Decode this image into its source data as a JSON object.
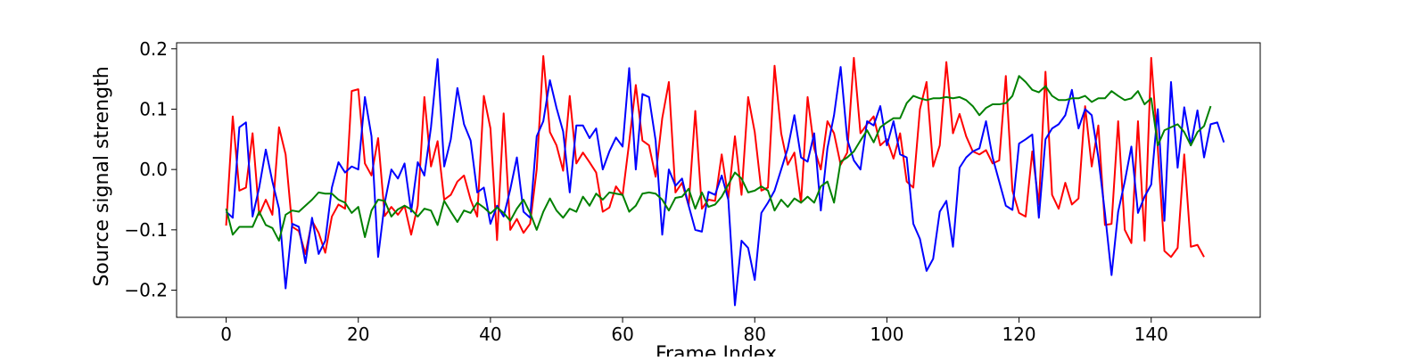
{
  "chart_data": {
    "type": "line",
    "title": "",
    "xlabel": "Frame Index",
    "ylabel": "Source signal strength",
    "xlim": [
      -7.5,
      156.5
    ],
    "ylim": [
      -0.245,
      0.21
    ],
    "xticks": [
      0,
      20,
      40,
      60,
      80,
      100,
      120,
      140
    ],
    "yticks": [
      -0.2,
      -0.1,
      0.0,
      0.1,
      0.2
    ],
    "ytick_labels": [
      "−0.2",
      "−0.1",
      "0.0",
      "0.1",
      "0.2"
    ],
    "grid": false,
    "legend": "none",
    "series": [
      {
        "color": "#ff0000",
        "values": [
          -0.093,
          0.088,
          -0.035,
          -0.03,
          0.06,
          -0.075,
          -0.05,
          -0.075,
          0.07,
          0.025,
          -0.095,
          -0.102,
          -0.14,
          -0.085,
          -0.105,
          -0.138,
          -0.078,
          -0.058,
          -0.065,
          0.13,
          0.133,
          0.01,
          -0.01,
          0.052,
          -0.077,
          -0.062,
          -0.075,
          -0.06,
          -0.108,
          -0.06,
          0.12,
          0.005,
          0.047,
          -0.05,
          -0.042,
          -0.02,
          -0.01,
          -0.05,
          -0.078,
          0.122,
          0.068,
          -0.117,
          0.093,
          -0.1,
          -0.082,
          -0.105,
          -0.09,
          0.0,
          0.188,
          0.062,
          0.04,
          -0.002,
          0.122,
          0.01,
          0.028,
          0.012,
          -0.005,
          -0.07,
          -0.063,
          -0.028,
          -0.043,
          0.045,
          0.14,
          0.048,
          0.04,
          -0.012,
          0.085,
          0.145,
          -0.038,
          -0.022,
          -0.06,
          0.097,
          -0.065,
          -0.05,
          -0.052,
          0.025,
          -0.048,
          0.055,
          -0.042,
          0.12,
          0.062,
          -0.035,
          -0.03,
          0.172,
          0.06,
          0.008,
          0.028,
          -0.055,
          0.12,
          0.035,
          0.0,
          0.08,
          0.06,
          0.008,
          0.028,
          0.185,
          0.06,
          0.075,
          0.088,
          0.04,
          0.05,
          0.018,
          0.06,
          -0.02,
          -0.03,
          0.1,
          0.145,
          0.005,
          0.04,
          0.178,
          0.06,
          0.092,
          0.055,
          0.03,
          0.025,
          0.032,
          0.01,
          0.015,
          0.155,
          -0.035,
          -0.072,
          -0.078,
          0.03,
          -0.058,
          0.162,
          -0.042,
          -0.065,
          -0.022,
          -0.058,
          -0.048,
          0.105,
          0.005,
          0.073,
          -0.092,
          -0.09,
          0.08,
          -0.1,
          -0.122,
          0.08,
          -0.118,
          0.185,
          0.035,
          -0.135,
          -0.145,
          -0.13,
          0.025,
          -0.128,
          -0.125,
          -0.145
        ]
      },
      {
        "color": "#0000ff",
        "values": [
          -0.07,
          -0.08,
          0.07,
          0.078,
          -0.078,
          -0.03,
          0.033,
          -0.02,
          -0.065,
          -0.197,
          -0.09,
          -0.095,
          -0.155,
          -0.08,
          -0.14,
          -0.118,
          -0.03,
          0.012,
          -0.005,
          0.005,
          0.0,
          0.12,
          0.055,
          -0.145,
          -0.055,
          0.0,
          -0.015,
          0.01,
          -0.07,
          0.012,
          -0.01,
          0.07,
          0.183,
          0.005,
          0.05,
          0.135,
          0.075,
          0.048,
          -0.038,
          -0.03,
          -0.09,
          -0.06,
          -0.078,
          -0.033,
          0.02,
          -0.07,
          -0.08,
          0.055,
          0.08,
          0.148,
          0.102,
          0.063,
          -0.038,
          0.073,
          0.073,
          0.052,
          0.068,
          0.0,
          0.03,
          0.053,
          0.038,
          0.168,
          0.0,
          0.125,
          0.12,
          0.048,
          -0.108,
          0.0,
          -0.027,
          -0.015,
          -0.06,
          -0.1,
          -0.103,
          -0.037,
          -0.042,
          -0.01,
          -0.05,
          -0.225,
          -0.118,
          -0.13,
          -0.183,
          -0.072,
          -0.055,
          -0.035,
          0.0,
          0.035,
          0.09,
          0.02,
          0.013,
          0.06,
          -0.068,
          0.035,
          0.09,
          0.17,
          0.05,
          0.015,
          0.0,
          0.08,
          0.073,
          0.105,
          0.04,
          0.08,
          0.025,
          0.02,
          -0.09,
          -0.115,
          -0.168,
          -0.148,
          -0.07,
          -0.052,
          -0.128,
          0.003,
          0.02,
          0.03,
          0.035,
          0.08,
          0.02,
          -0.02,
          -0.06,
          -0.067,
          0.043,
          0.05,
          0.058,
          -0.08,
          0.05,
          0.068,
          0.075,
          0.09,
          0.132,
          0.068,
          0.1,
          0.09,
          0.02,
          -0.072,
          -0.175,
          -0.07,
          -0.02,
          0.038,
          -0.072,
          -0.045,
          -0.025,
          0.1,
          -0.085,
          0.145,
          0.003,
          0.103,
          0.04,
          0.098,
          0.02,
          0.075,
          0.078,
          0.045
        ]
      },
      {
        "color": "#008000",
        "values": [
          -0.065,
          -0.108,
          -0.095,
          -0.095,
          -0.095,
          -0.07,
          -0.092,
          -0.097,
          -0.118,
          -0.075,
          -0.068,
          -0.07,
          -0.06,
          -0.05,
          -0.038,
          -0.04,
          -0.04,
          -0.05,
          -0.055,
          -0.072,
          -0.062,
          -0.112,
          -0.068,
          -0.05,
          -0.052,
          -0.078,
          -0.066,
          -0.06,
          -0.066,
          -0.078,
          -0.065,
          -0.068,
          -0.092,
          -0.052,
          -0.07,
          -0.087,
          -0.068,
          -0.072,
          -0.055,
          -0.063,
          -0.073,
          -0.063,
          -0.072,
          -0.085,
          -0.065,
          -0.05,
          -0.072,
          -0.1,
          -0.07,
          -0.048,
          -0.068,
          -0.08,
          -0.065,
          -0.07,
          -0.045,
          -0.06,
          -0.04,
          -0.05,
          -0.038,
          -0.04,
          -0.042,
          -0.07,
          -0.06,
          -0.04,
          -0.038,
          -0.04,
          -0.05,
          -0.068,
          -0.047,
          -0.045,
          -0.032,
          -0.065,
          -0.038,
          -0.062,
          -0.058,
          -0.045,
          -0.025,
          -0.005,
          -0.015,
          -0.038,
          -0.035,
          -0.028,
          -0.035,
          -0.068,
          -0.05,
          -0.062,
          -0.048,
          -0.055,
          -0.045,
          -0.055,
          -0.028,
          -0.02,
          -0.055,
          0.013,
          0.02,
          0.03,
          0.048,
          0.065,
          0.045,
          0.07,
          0.078,
          0.085,
          0.085,
          0.11,
          0.122,
          0.118,
          0.115,
          0.118,
          0.118,
          0.12,
          0.118,
          0.12,
          0.115,
          0.105,
          0.09,
          0.102,
          0.108,
          0.108,
          0.11,
          0.122,
          0.155,
          0.145,
          0.132,
          0.128,
          0.138,
          0.122,
          0.115,
          0.115,
          0.118,
          0.118,
          0.122,
          0.112,
          0.118,
          0.118,
          0.13,
          0.122,
          0.115,
          0.118,
          0.13,
          0.108,
          0.118,
          0.04,
          0.065,
          0.07,
          0.075,
          0.062,
          0.04,
          0.062,
          0.072,
          0.105
        ]
      }
    ]
  }
}
